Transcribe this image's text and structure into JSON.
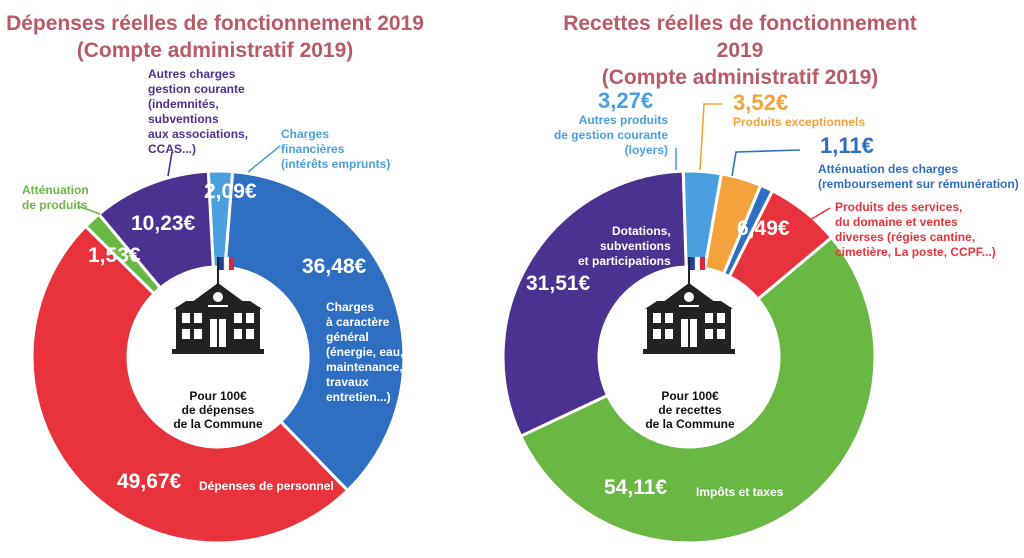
{
  "chart_data": [
    {
      "type": "pie",
      "title": "Dépenses réelles de fonctionnement 2019",
      "subtitle": "(Compte administratif 2019)",
      "center_label": [
        "Pour 100€",
        "de dépenses",
        "de la Commune"
      ],
      "slices": [
        {
          "value": 2.09,
          "value_label": "2,09€",
          "label": [
            "Charges",
            "financières",
            "(intérêts emprunts)"
          ],
          "color": "#4a9fe0"
        },
        {
          "value": 36.48,
          "value_label": "36,48€",
          "label": [
            "Charges",
            "à caractère",
            "général",
            "(énergie, eau,",
            "maintenance,",
            "travaux",
            "entretien...)"
          ],
          "color": "#2f6fc2"
        },
        {
          "value": 49.67,
          "value_label": "49,67€",
          "label": [
            "Dépenses de personnel"
          ],
          "color": "#e8333c"
        },
        {
          "value": 1.53,
          "value_label": "1,53€",
          "label": [
            "Atténuation",
            "de produits"
          ],
          "color": "#6ab844"
        },
        {
          "value": 10.23,
          "value_label": "10,23€",
          "label": [
            "Autres charges",
            "gestion courante",
            "(indemnités,",
            "subventions",
            "aux associations,",
            "CCAS...)"
          ],
          "color": "#4b3290"
        }
      ]
    },
    {
      "type": "pie",
      "title": "Recettes réelles de fonctionnement 2019",
      "subtitle": "(Compte administratif 2019)",
      "center_label": [
        "Pour 100€",
        "de recettes",
        "de la Commune"
      ],
      "slices": [
        {
          "value": 3.52,
          "value_label": "3,52€",
          "label": [
            "Produits exceptionnels"
          ],
          "color": "#f4a33c"
        },
        {
          "value": 1.11,
          "value_label": "1,11€",
          "label": [
            "Atténuation des charges",
            "(remboursement sur rémunération)"
          ],
          "color": "#2f6fc2"
        },
        {
          "value": 6.49,
          "value_label": "6,49€",
          "label": [
            "Produits des services,",
            "du domaine et ventes",
            "diverses (régies cantine,",
            "cimetière, La poste, CCPF...)"
          ],
          "color": "#e8333c"
        },
        {
          "value": 54.11,
          "value_label": "54,11€",
          "label": [
            "Impôts et taxes"
          ],
          "color": "#6ab844"
        },
        {
          "value": 31.51,
          "value_label": "31,51€",
          "label": [
            "Dotations,",
            "subventions",
            "et participations"
          ],
          "color": "#4b3290"
        },
        {
          "value": 3.27,
          "value_label": "3,27€",
          "label": [
            "Autres produits",
            "de gestion courante",
            "(loyers)"
          ],
          "color": "#4a9fe0"
        }
      ]
    }
  ],
  "icon": "town-hall-icon",
  "flag_colors": [
    "#1f3e9c",
    "#ffffff",
    "#e0233a"
  ]
}
